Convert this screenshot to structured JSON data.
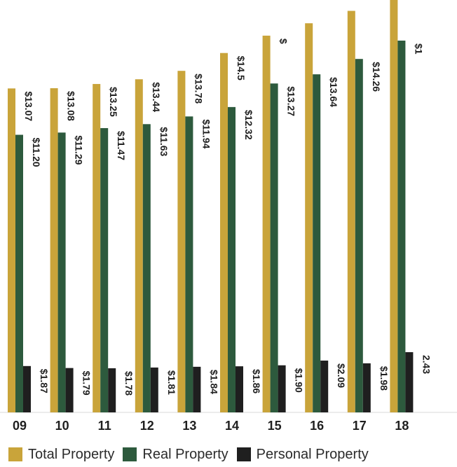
{
  "chart_data": {
    "type": "bar",
    "title": "",
    "xlabel": "",
    "ylabel": "",
    "categories": [
      "09",
      "10",
      "11",
      "12",
      "13",
      "14",
      "15",
      "16",
      "17",
      "18"
    ],
    "series": [
      {
        "name": "Total Property",
        "color": "#c9a43a",
        "values": [
          13.07,
          13.08,
          13.25,
          13.44,
          13.78,
          14.5,
          15.2,
          15.7,
          16.2,
          17.0
        ],
        "labels": [
          "$13.07",
          "$13.08",
          "$13.25",
          "$13.44",
          "$13.78",
          "$14.5",
          "$",
          "",
          "",
          ""
        ]
      },
      {
        "name": "Real Property",
        "color": "#2d5a3d",
        "values": [
          11.2,
          11.29,
          11.47,
          11.63,
          11.94,
          12.32,
          13.27,
          13.64,
          14.26,
          15.0
        ],
        "labels": [
          "$11.20",
          "$11.29",
          "$11.47",
          "$11.63",
          "$11.94",
          "$12.32",
          "$13.27",
          "$13.64",
          "$14.26",
          "$1"
        ]
      },
      {
        "name": "Personal Property",
        "color": "#1f1f1f",
        "values": [
          1.87,
          1.79,
          1.78,
          1.81,
          1.84,
          1.86,
          1.9,
          2.09,
          1.98,
          2.43
        ],
        "labels": [
          "$1.87",
          "$1.79",
          "$1.78",
          "$1.81",
          "$1.84",
          "$1.86",
          "$1.90",
          "$2.09",
          "$1.98",
          "2.43"
        ]
      }
    ],
    "grid": false,
    "legend_position": "bottom-left"
  }
}
